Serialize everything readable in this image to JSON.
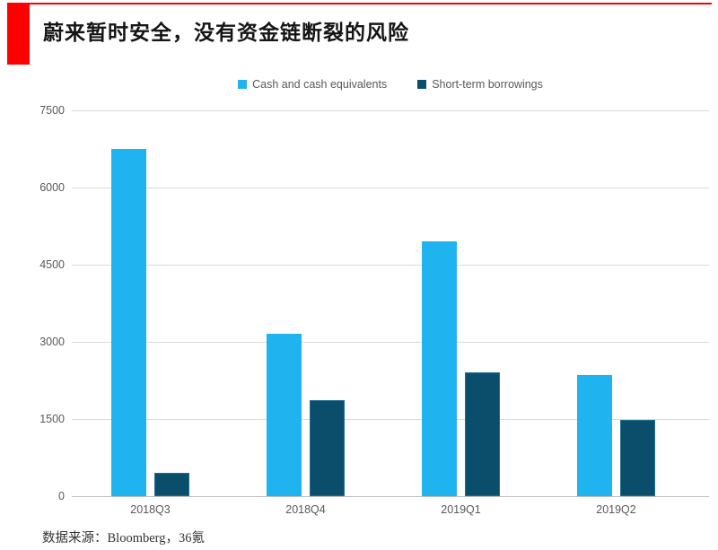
{
  "header": {
    "title": "蔚来暂时安全，没有资金链断裂的风险"
  },
  "footer": {
    "source": "数据来源：Bloomberg，36氪"
  },
  "colors": {
    "accent_red": "#fe0000",
    "cash_blue": "#1fb3ef",
    "borrowings_navy": "#0a4e6c",
    "gridline_gray": "#d9d9d9",
    "axis_text_gray": "#595959"
  },
  "chart_data": {
    "type": "bar",
    "title": "蔚来暂时安全，没有资金链断裂的风险",
    "categories": [
      "2018Q3",
      "2018Q4",
      "2019Q1",
      "2019Q2"
    ],
    "series": [
      {
        "name": "Cash and cash equivalents",
        "key": "cash",
        "color": "#1fb3ef",
        "values": [
          6750,
          3150,
          4950,
          2350
        ]
      },
      {
        "name": "Short-term borrowings",
        "key": "borrowings",
        "color": "#0a4e6c",
        "values": [
          450,
          1870,
          2400,
          1480
        ]
      }
    ],
    "xlabel": "",
    "ylabel": "",
    "ylim": [
      0,
      7500
    ],
    "yticks": [
      0,
      1500,
      3000,
      4500,
      6000,
      7500
    ],
    "grid": "horizontal",
    "legend_position": "top-center"
  }
}
